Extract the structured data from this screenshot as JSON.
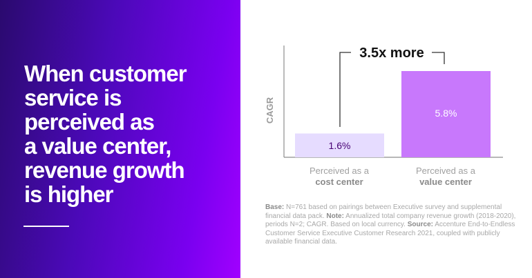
{
  "headline": [
    "When customer",
    "service is",
    "perceived as",
    "a value center,",
    "revenue growth",
    "is higher"
  ],
  "chart_data": {
    "type": "bar",
    "ylabel": "CAGR",
    "categories": [
      {
        "line1": "Perceived as a",
        "line2": "cost center"
      },
      {
        "line1": "Perceived as a",
        "line2": "value center"
      }
    ],
    "values": [
      1.6,
      5.8
    ],
    "data_labels": [
      "1.6%",
      "5.8%"
    ],
    "annotation": "3.5x more",
    "ylim": [
      0,
      7.5
    ],
    "grid": false,
    "colors": [
      "#e6dcff",
      "#c878fc"
    ]
  },
  "footnote": {
    "base_label": "Base:",
    "base_text": " N=761 based on pairings between Executive survey and supplemental financial data pack. ",
    "note_label": "Note:",
    "note_text": " Annualized total company revenue growth (2018-2020), periods N=2; CAGR. Based on local currency. ",
    "source_label": "Source:",
    "source_text": " Accenture End-to-Endless Customer Service Executive Customer Research 2021, coupled with publicly available financial data."
  }
}
